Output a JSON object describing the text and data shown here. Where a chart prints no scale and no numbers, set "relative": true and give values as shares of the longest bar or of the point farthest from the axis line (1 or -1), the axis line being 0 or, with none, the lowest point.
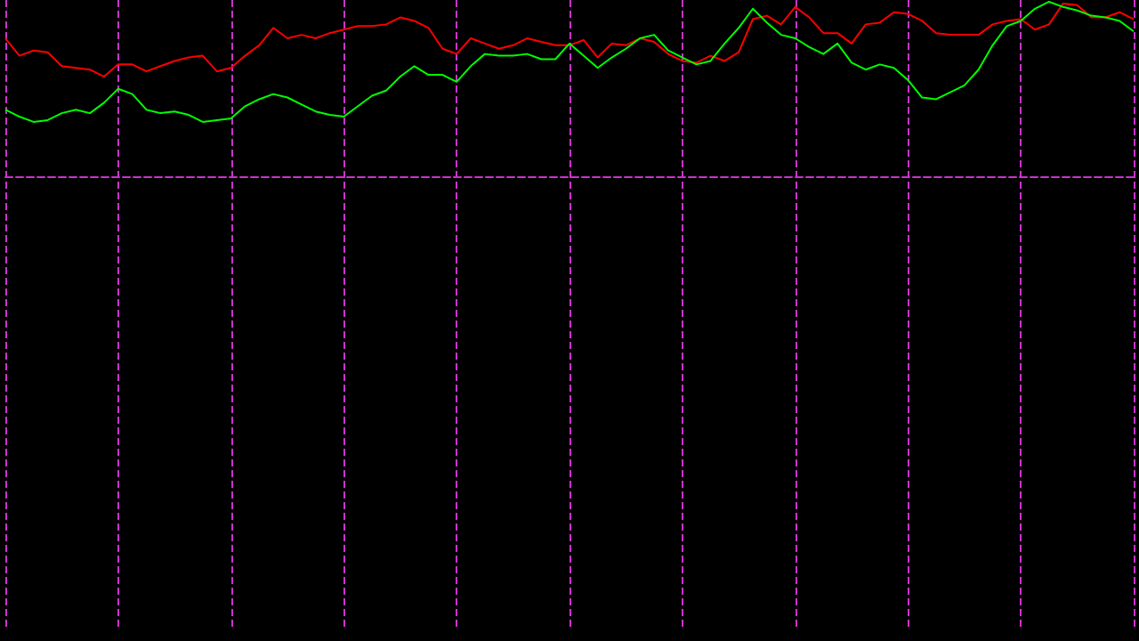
{
  "chart_data": {
    "type": "line",
    "relative": true,
    "grid": "x",
    "categories": [
      null,
      null,
      null,
      null,
      null,
      null,
      null,
      null,
      null,
      null,
      null,
      null,
      null,
      null,
      null,
      null,
      null,
      null,
      null,
      null,
      null,
      null,
      null,
      null,
      null,
      null,
      null,
      null,
      null,
      null,
      null,
      null,
      null,
      null,
      null,
      null,
      null,
      null,
      null,
      null,
      null,
      null,
      null,
      null,
      null,
      null,
      null,
      null,
      null,
      null,
      null,
      null,
      null,
      null,
      null,
      null,
      null,
      null,
      null,
      null,
      null,
      null,
      null,
      null,
      null,
      null,
      null,
      null,
      null,
      null,
      null,
      null,
      null,
      null,
      null,
      null,
      null,
      null,
      null,
      null,
      null
    ],
    "series": [
      {
        "color": "#ff0000",
        "values": [
          0.79,
          0.69,
          0.72,
          0.71,
          0.63,
          0.62,
          0.61,
          0.57,
          0.64,
          0.64,
          0.6,
          0.63,
          0.66,
          0.68,
          0.69,
          0.6,
          0.62,
          0.69,
          0.75,
          0.85,
          0.79,
          0.81,
          0.79,
          0.82,
          0.84,
          0.86,
          0.86,
          0.87,
          0.91,
          0.89,
          0.85,
          0.73,
          0.7,
          0.79,
          0.76,
          0.73,
          0.75,
          0.79,
          0.77,
          0.75,
          0.75,
          0.78,
          0.68,
          0.76,
          0.75,
          0.79,
          0.77,
          0.7,
          0.66,
          0.65,
          0.69,
          0.66,
          0.71,
          0.9,
          0.92,
          0.87,
          0.97,
          0.91,
          0.82,
          0.82,
          0.76,
          0.87,
          0.88,
          0.94,
          0.93,
          0.89,
          0.82,
          0.81,
          0.81,
          0.81,
          0.87,
          0.89,
          0.9,
          0.84,
          0.87,
          0.99,
          0.98,
          0.91,
          0.91,
          0.94,
          0.9
        ]
      },
      {
        "color": "#00ff00",
        "values": [
          0.38,
          0.34,
          0.31,
          0.32,
          0.36,
          0.38,
          0.36,
          0.42,
          0.5,
          0.47,
          0.38,
          0.36,
          0.37,
          0.35,
          0.31,
          0.32,
          0.33,
          0.4,
          0.44,
          0.47,
          0.45,
          0.41,
          0.37,
          0.35,
          0.34,
          0.4,
          0.46,
          0.49,
          0.57,
          0.63,
          0.58,
          0.58,
          0.54,
          0.63,
          0.7,
          0.69,
          0.69,
          0.7,
          0.67,
          0.67,
          0.76,
          0.69,
          0.62,
          0.68,
          0.73,
          0.79,
          0.81,
          0.72,
          0.68,
          0.64,
          0.66,
          0.76,
          0.85,
          0.96,
          0.88,
          0.81,
          0.79,
          0.74,
          0.7,
          0.76,
          0.65,
          0.61,
          0.64,
          0.62,
          0.55,
          0.45,
          0.44,
          0.48,
          0.52,
          0.61,
          0.75,
          0.86,
          0.89,
          0.96,
          1.0,
          0.97,
          0.95,
          0.92,
          0.91,
          0.89,
          0.83
        ]
      }
    ]
  }
}
